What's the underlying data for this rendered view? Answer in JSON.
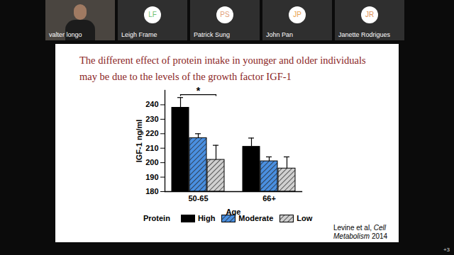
{
  "meeting": {
    "participants": [
      {
        "name": "valter longo"
      },
      {
        "initials": "LF",
        "name": "Leigh Frame",
        "color": "#6fbf73"
      },
      {
        "initials": "PS",
        "name": "Patrick Sung",
        "color": "#e2a07a"
      },
      {
        "initials": "JP",
        "name": "John Pan",
        "color": "#e9a24d"
      },
      {
        "initials": "JR",
        "name": "Janette Rodrigues",
        "color": "#df9459"
      }
    ],
    "more": "+3"
  },
  "chart_data": {
    "type": "bar",
    "title": "The different effect of protein intake in younger and older individuals may be due to the levels of the growth factor IGF-1",
    "x_label": "Age",
    "y_label": "IGF-1 ng/ml",
    "categories": [
      "50-65",
      "66+"
    ],
    "series": [
      {
        "name": "High",
        "color": "#000000",
        "values": [
          238,
          211
        ],
        "errors": [
          7,
          6
        ]
      },
      {
        "name": "Moderate",
        "color": "#4a8fe0",
        "values": [
          217,
          201
        ],
        "errors": [
          3,
          3
        ]
      },
      {
        "name": "Low",
        "color": "#d0d0d0",
        "values": [
          202,
          196
        ],
        "errors": [
          10,
          8
        ]
      }
    ],
    "ylim": [
      180,
      250
    ],
    "yticks": [
      180,
      190,
      200,
      210,
      220,
      230,
      240
    ],
    "grid": false,
    "legend": "bottom",
    "legend_title": "Protein",
    "annotations": [
      {
        "text": "*",
        "category": "50-65",
        "between": [
          "High",
          "Low"
        ],
        "y": 247
      }
    ],
    "source": {
      "authors": "Levine et al,",
      "journal": "Cell Metabolism",
      "year": "2014"
    }
  }
}
